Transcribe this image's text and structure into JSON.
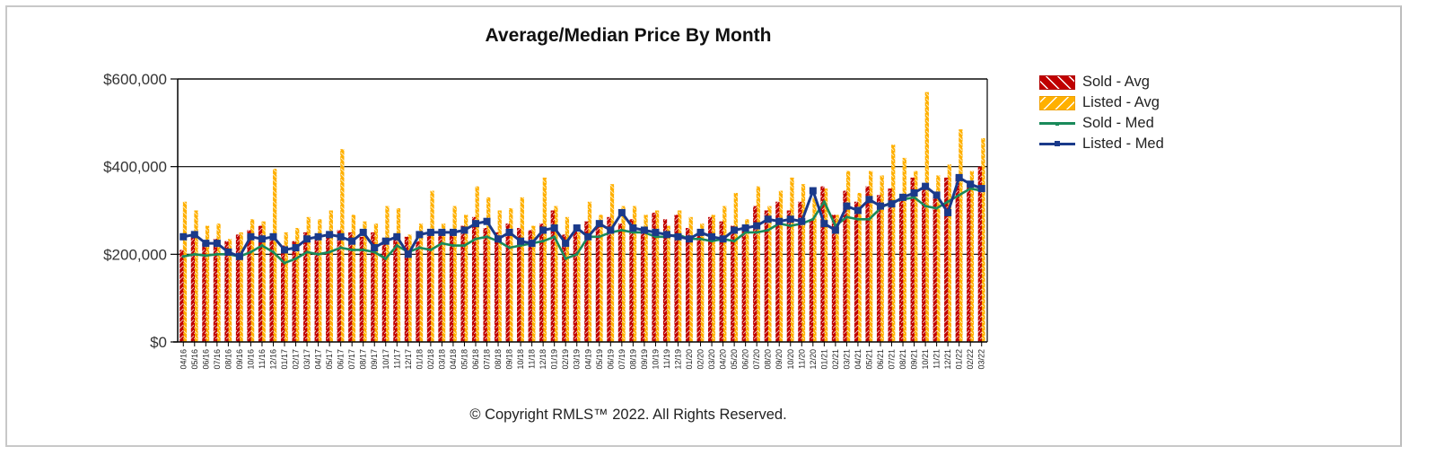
{
  "chart_data": {
    "type": "bar",
    "title": "Average/Median Price By Month",
    "xlabel": "",
    "ylabel": "",
    "ylim": [
      0,
      600000
    ],
    "yticks": [
      0,
      200000,
      400000,
      600000
    ],
    "ytick_labels": [
      "$0",
      "$200,000",
      "$400,000",
      "$600,000"
    ],
    "grid": "horizontal",
    "legend_position": "right",
    "categories": [
      "04/16",
      "05/16",
      "06/16",
      "07/16",
      "08/16",
      "09/16",
      "10/16",
      "11/16",
      "12/16",
      "01/17",
      "02/17",
      "03/17",
      "04/17",
      "05/17",
      "06/17",
      "07/17",
      "08/17",
      "09/17",
      "10/17",
      "11/17",
      "12/17",
      "01/18",
      "02/18",
      "03/18",
      "04/18",
      "05/18",
      "06/18",
      "07/18",
      "08/18",
      "09/18",
      "10/18",
      "11/18",
      "12/18",
      "01/19",
      "02/19",
      "03/19",
      "04/19",
      "05/19",
      "06/19",
      "07/19",
      "08/19",
      "09/19",
      "10/19",
      "11/19",
      "12/19",
      "01/20",
      "02/20",
      "03/20",
      "04/20",
      "05/20",
      "06/20",
      "07/20",
      "08/20",
      "09/20",
      "10/20",
      "11/20",
      "12/20",
      "01/21",
      "02/21",
      "03/21",
      "04/21",
      "05/21",
      "06/21",
      "07/21",
      "08/21",
      "09/21",
      "10/21",
      "11/21",
      "12/21",
      "01/22",
      "02/22",
      "03/22"
    ],
    "series": [
      {
        "name": "Sold - Avg",
        "kind": "bar",
        "color": "#c00000",
        "values": [
          210000,
          240000,
          225000,
          235000,
          230000,
          245000,
          255000,
          265000,
          240000,
          220000,
          230000,
          250000,
          245000,
          240000,
          255000,
          250000,
          240000,
          250000,
          235000,
          245000,
          240000,
          230000,
          250000,
          255000,
          250000,
          265000,
          285000,
          260000,
          250000,
          270000,
          260000,
          255000,
          270000,
          300000,
          245000,
          255000,
          275000,
          265000,
          285000,
          270000,
          280000,
          260000,
          295000,
          280000,
          290000,
          260000,
          255000,
          285000,
          275000,
          265000,
          265000,
          310000,
          300000,
          320000,
          300000,
          320000,
          280000,
          355000,
          290000,
          345000,
          320000,
          355000,
          335000,
          350000,
          330000,
          375000,
          355000,
          330000,
          375000,
          380000,
          360000,
          400000
        ]
      },
      {
        "name": "Listed - Avg",
        "kind": "bar",
        "color": "#ffb000",
        "values": [
          320000,
          300000,
          265000,
          270000,
          235000,
          250000,
          280000,
          275000,
          395000,
          250000,
          260000,
          285000,
          280000,
          300000,
          440000,
          290000,
          275000,
          270000,
          310000,
          305000,
          245000,
          270000,
          345000,
          270000,
          310000,
          290000,
          355000,
          330000,
          300000,
          305000,
          330000,
          265000,
          375000,
          310000,
          285000,
          250000,
          320000,
          290000,
          360000,
          310000,
          310000,
          290000,
          300000,
          265000,
          300000,
          285000,
          270000,
          290000,
          310000,
          340000,
          280000,
          355000,
          310000,
          345000,
          375000,
          360000,
          330000,
          350000,
          290000,
          390000,
          340000,
          390000,
          380000,
          450000,
          420000,
          390000,
          570000,
          380000,
          405000,
          485000,
          390000,
          465000
        ]
      },
      {
        "name": "Sold - Med",
        "kind": "line",
        "color": "#1a8a5a",
        "values": [
          195000,
          200000,
          197000,
          200000,
          200000,
          195000,
          205000,
          220000,
          205000,
          180000,
          190000,
          205000,
          200000,
          205000,
          215000,
          210000,
          210000,
          205000,
          190000,
          220000,
          205000,
          215000,
          210000,
          225000,
          220000,
          220000,
          235000,
          240000,
          230000,
          215000,
          220000,
          225000,
          230000,
          240000,
          190000,
          200000,
          240000,
          240000,
          250000,
          255000,
          250000,
          250000,
          240000,
          240000,
          245000,
          235000,
          235000,
          230000,
          235000,
          230000,
          250000,
          250000,
          255000,
          270000,
          265000,
          270000,
          280000,
          320000,
          265000,
          285000,
          280000,
          280000,
          305000,
          320000,
          325000,
          330000,
          310000,
          305000,
          320000,
          335000,
          350000,
          345000
        ]
      },
      {
        "name": "Listed - Med",
        "kind": "line",
        "color": "#1a3a8a",
        "values": [
          240000,
          245000,
          225000,
          225000,
          205000,
          195000,
          240000,
          235000,
          240000,
          210000,
          215000,
          235000,
          240000,
          245000,
          240000,
          230000,
          250000,
          215000,
          230000,
          240000,
          200000,
          245000,
          250000,
          250000,
          250000,
          255000,
          270000,
          275000,
          235000,
          250000,
          230000,
          225000,
          255000,
          260000,
          225000,
          260000,
          240000,
          270000,
          255000,
          295000,
          260000,
          255000,
          250000,
          245000,
          240000,
          235000,
          250000,
          240000,
          235000,
          255000,
          260000,
          265000,
          280000,
          275000,
          280000,
          275000,
          345000,
          270000,
          255000,
          310000,
          300000,
          325000,
          310000,
          315000,
          330000,
          340000,
          355000,
          335000,
          295000,
          375000,
          360000,
          350000
        ]
      }
    ]
  },
  "legend": {
    "items": [
      {
        "label": "Sold - Avg"
      },
      {
        "label": "Listed - Avg"
      },
      {
        "label": "Sold - Med"
      },
      {
        "label": "Listed - Med"
      }
    ]
  },
  "footer": {
    "copyright": "© Copyright RMLS™ 2022.  All Rights Reserved."
  }
}
